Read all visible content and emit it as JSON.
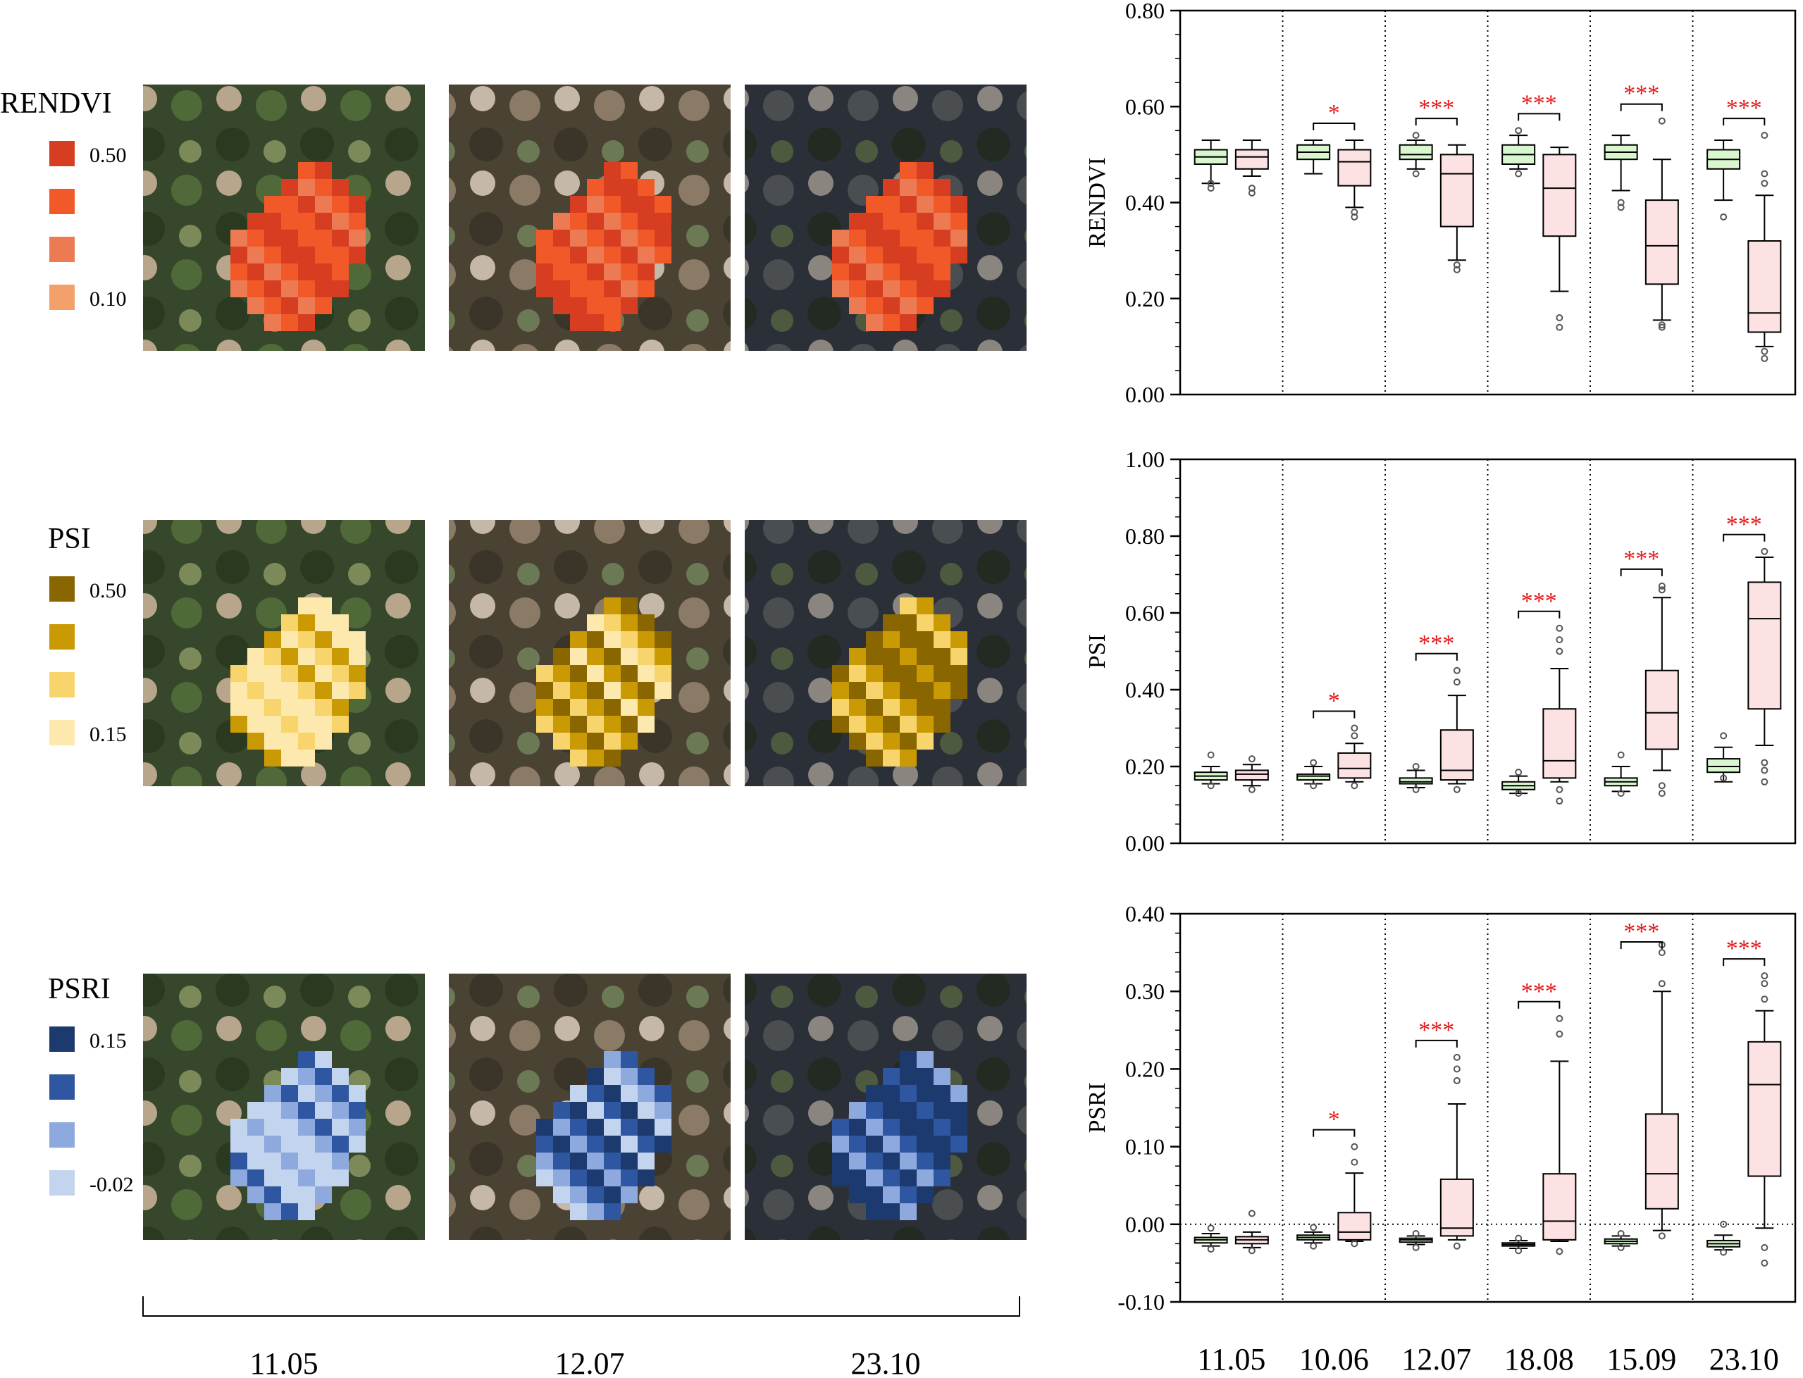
{
  "legend_panels": [
    {
      "index": "RENDVI",
      "max_label": "0.50",
      "min_label": "0.10",
      "colors": [
        "#d63d21",
        "#f15a28",
        "#ec7a52",
        "#f3a06b"
      ]
    },
    {
      "index": "PSI",
      "max_label": "0.50",
      "min_label": "0.15",
      "colors": [
        "#8a6600",
        "#c99a04",
        "#f8d56c",
        "#fde9ad"
      ]
    },
    {
      "index": "PSRI",
      "max_label": "0.15",
      "min_label": "-0.02",
      "colors": [
        "#1d3a6e",
        "#2f56a0",
        "#8ea9de",
        "#c3d4ee"
      ]
    }
  ],
  "image_dates": [
    "11.05",
    "12.07",
    "23.10"
  ],
  "colors": {
    "healthy_box": "#d9f7cf",
    "damaged_box": "#fde2e4",
    "significance": "#e31a1c",
    "canopy_image_backgrounds": [
      "#37472b",
      "#4a4232",
      "#2b3038"
    ]
  },
  "chart_data": [
    {
      "type": "box",
      "ylabel": "RENDVI",
      "ylim": [
        0.0,
        0.8
      ],
      "yticks": [
        "0.00",
        "0.20",
        "0.40",
        "0.60",
        "0.80"
      ],
      "categories": [
        "11.05",
        "10.06",
        "12.07",
        "18.08",
        "15.09",
        "23.10"
      ],
      "significance": [
        "",
        "*",
        "***",
        "***",
        "***",
        "***"
      ],
      "groups": {
        "healthy": [
          {
            "min": 0.44,
            "q1": 0.48,
            "median": 0.495,
            "q3": 0.51,
            "max": 0.53,
            "outliers": [
              0.43,
              0.44
            ]
          },
          {
            "min": 0.46,
            "q1": 0.49,
            "median": 0.505,
            "q3": 0.52,
            "max": 0.53,
            "outliers": []
          },
          {
            "min": 0.47,
            "q1": 0.49,
            "median": 0.5,
            "q3": 0.52,
            "max": 0.53,
            "outliers": [
              0.46,
              0.54
            ]
          },
          {
            "min": 0.47,
            "q1": 0.48,
            "median": 0.5,
            "q3": 0.52,
            "max": 0.54,
            "outliers": [
              0.46,
              0.55
            ]
          },
          {
            "min": 0.425,
            "q1": 0.49,
            "median": 0.505,
            "q3": 0.52,
            "max": 0.54,
            "outliers": [
              0.39,
              0.4
            ]
          },
          {
            "min": 0.405,
            "q1": 0.47,
            "median": 0.49,
            "q3": 0.51,
            "max": 0.53,
            "outliers": [
              0.37
            ]
          }
        ],
        "damaged": [
          {
            "min": 0.455,
            "q1": 0.47,
            "median": 0.495,
            "q3": 0.51,
            "max": 0.53,
            "outliers": [
              0.42,
              0.43
            ]
          },
          {
            "min": 0.39,
            "q1": 0.435,
            "median": 0.485,
            "q3": 0.51,
            "max": 0.53,
            "outliers": [
              0.37,
              0.38
            ]
          },
          {
            "min": 0.28,
            "q1": 0.35,
            "median": 0.46,
            "q3": 0.5,
            "max": 0.52,
            "outliers": [
              0.26,
              0.27
            ]
          },
          {
            "min": 0.215,
            "q1": 0.33,
            "median": 0.43,
            "q3": 0.5,
            "max": 0.515,
            "outliers": [
              0.14,
              0.16
            ]
          },
          {
            "min": 0.155,
            "q1": 0.23,
            "median": 0.31,
            "q3": 0.405,
            "max": 0.49,
            "outliers": [
              0.14,
              0.145,
              0.57
            ]
          },
          {
            "min": 0.1,
            "q1": 0.13,
            "median": 0.17,
            "q3": 0.32,
            "max": 0.415,
            "outliers": [
              0.075,
              0.09,
              0.44,
              0.46,
              0.54
            ]
          }
        ]
      }
    },
    {
      "type": "box",
      "ylabel": "PSI",
      "ylim": [
        0.0,
        1.0
      ],
      "yticks": [
        "0.00",
        "0.20",
        "0.40",
        "0.60",
        "0.80",
        "1.00"
      ],
      "categories": [
        "11.05",
        "10.06",
        "12.07",
        "18.08",
        "15.09",
        "23.10"
      ],
      "significance": [
        "",
        "*",
        "***",
        "***",
        "***",
        "***"
      ],
      "groups": {
        "healthy": [
          {
            "min": 0.155,
            "q1": 0.165,
            "median": 0.175,
            "q3": 0.185,
            "max": 0.2,
            "outliers": [
              0.15,
              0.23
            ]
          },
          {
            "min": 0.155,
            "q1": 0.165,
            "median": 0.175,
            "q3": 0.18,
            "max": 0.2,
            "outliers": [
              0.15,
              0.21
            ]
          },
          {
            "min": 0.145,
            "q1": 0.155,
            "median": 0.16,
            "q3": 0.17,
            "max": 0.19,
            "outliers": [
              0.14,
              0.2
            ]
          },
          {
            "min": 0.13,
            "q1": 0.14,
            "median": 0.15,
            "q3": 0.16,
            "max": 0.175,
            "outliers": [
              0.13,
              0.185
            ]
          },
          {
            "min": 0.135,
            "q1": 0.15,
            "median": 0.16,
            "q3": 0.17,
            "max": 0.2,
            "outliers": [
              0.13,
              0.23
            ]
          },
          {
            "min": 0.16,
            "q1": 0.185,
            "median": 0.2,
            "q3": 0.22,
            "max": 0.25,
            "outliers": [
              0.17,
              0.28
            ]
          }
        ],
        "damaged": [
          {
            "min": 0.15,
            "q1": 0.165,
            "median": 0.18,
            "q3": 0.19,
            "max": 0.205,
            "outliers": [
              0.14,
              0.22
            ]
          },
          {
            "min": 0.16,
            "q1": 0.17,
            "median": 0.195,
            "q3": 0.235,
            "max": 0.26,
            "outliers": [
              0.15,
              0.28,
              0.3
            ]
          },
          {
            "min": 0.155,
            "q1": 0.165,
            "median": 0.19,
            "q3": 0.295,
            "max": 0.385,
            "outliers": [
              0.14,
              0.42,
              0.45
            ]
          },
          {
            "min": 0.16,
            "q1": 0.17,
            "median": 0.215,
            "q3": 0.35,
            "max": 0.455,
            "outliers": [
              0.11,
              0.14,
              0.5,
              0.53,
              0.56
            ]
          },
          {
            "min": 0.19,
            "q1": 0.245,
            "median": 0.34,
            "q3": 0.45,
            "max": 0.64,
            "outliers": [
              0.13,
              0.15,
              0.66,
              0.67
            ]
          },
          {
            "min": 0.255,
            "q1": 0.35,
            "median": 0.585,
            "q3": 0.68,
            "max": 0.745,
            "outliers": [
              0.16,
              0.19,
              0.21,
              0.76
            ]
          }
        ]
      }
    },
    {
      "type": "box",
      "ylabel": "PSRI",
      "ylim": [
        -0.1,
        0.4
      ],
      "yticks": [
        "-0.10",
        "0.00",
        "0.10",
        "0.20",
        "0.30",
        "0.40"
      ],
      "zero_line": true,
      "categories": [
        "11.05",
        "10.06",
        "12.07",
        "18.08",
        "15.09",
        "23.10"
      ],
      "significance": [
        "",
        "*",
        "***",
        "***",
        "***",
        "***"
      ],
      "groups": {
        "healthy": [
          {
            "min": -0.028,
            "q1": -0.024,
            "median": -0.02,
            "q3": -0.017,
            "max": -0.012,
            "outliers": [
              -0.032,
              -0.005
            ]
          },
          {
            "min": -0.024,
            "q1": -0.02,
            "median": -0.017,
            "q3": -0.014,
            "max": -0.01,
            "outliers": [
              -0.028,
              -0.004
            ]
          },
          {
            "min": -0.026,
            "q1": -0.023,
            "median": -0.02,
            "q3": -0.018,
            "max": -0.015,
            "outliers": [
              -0.03,
              -0.012
            ]
          },
          {
            "min": -0.031,
            "q1": -0.028,
            "median": -0.026,
            "q3": -0.024,
            "max": -0.021,
            "outliers": [
              -0.034,
              -0.018
            ]
          },
          {
            "min": -0.028,
            "q1": -0.025,
            "median": -0.022,
            "q3": -0.019,
            "max": -0.015,
            "outliers": [
              -0.03,
              -0.012
            ]
          },
          {
            "min": -0.033,
            "q1": -0.029,
            "median": -0.025,
            "q3": -0.021,
            "max": -0.014,
            "outliers": [
              -0.036,
              0.0
            ]
          }
        ],
        "damaged": [
          {
            "min": -0.03,
            "q1": -0.025,
            "median": -0.02,
            "q3": -0.016,
            "max": -0.01,
            "outliers": [
              -0.034,
              0.014
            ]
          },
          {
            "min": -0.022,
            "q1": -0.02,
            "median": -0.01,
            "q3": 0.015,
            "max": 0.066,
            "outliers": [
              -0.025,
              0.08,
              0.1
            ]
          },
          {
            "min": -0.02,
            "q1": -0.015,
            "median": -0.005,
            "q3": 0.058,
            "max": 0.155,
            "outliers": [
              -0.028,
              0.185,
              0.2,
              0.215
            ]
          },
          {
            "min": -0.022,
            "q1": -0.02,
            "median": 0.004,
            "q3": 0.065,
            "max": 0.21,
            "outliers": [
              -0.035,
              0.245,
              0.265
            ]
          },
          {
            "min": -0.008,
            "q1": 0.02,
            "median": 0.065,
            "q3": 0.142,
            "max": 0.3,
            "outliers": [
              -0.015,
              0.31,
              0.35,
              0.36
            ]
          },
          {
            "min": -0.005,
            "q1": 0.062,
            "median": 0.18,
            "q3": 0.235,
            "max": 0.275,
            "outliers": [
              -0.03,
              -0.05,
              0.29,
              0.31,
              0.32
            ]
          }
        ]
      }
    }
  ]
}
